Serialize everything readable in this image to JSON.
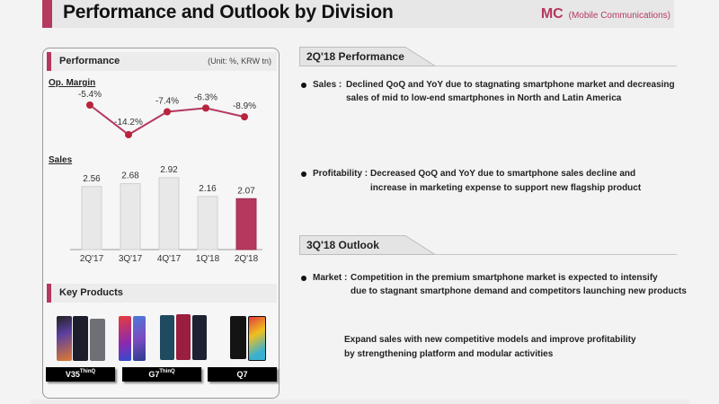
{
  "header": {
    "title": "Performance and Outlook by Division",
    "division_code": "MC",
    "division_name": "(Mobile Communications)",
    "accent_color": "#b5385e"
  },
  "left_panel": {
    "performance_title": "Performance",
    "unit": "(Unit: %, KRW tn)",
    "op_margin_label": "Op. Margin",
    "sales_label": "Sales",
    "key_products_title": "Key Products",
    "products": [
      {
        "name": "V35",
        "suffix": "ThinQ"
      },
      {
        "name": "G7",
        "suffix": "ThinQ"
      },
      {
        "name": "Q7",
        "suffix": ""
      }
    ]
  },
  "chart_data": [
    {
      "type": "line",
      "title": "Op. Margin",
      "categories": [
        "2Q'17",
        "3Q'17",
        "4Q'17",
        "1Q'18",
        "2Q'18"
      ],
      "values": [
        -5.4,
        -14.2,
        -7.4,
        -6.3,
        -8.9
      ],
      "labels": [
        "-5.4%",
        "-14.2%",
        "-7.4%",
        "-6.3%",
        "-8.9%"
      ],
      "unit": "%",
      "color": "#b5385e",
      "grid": false
    },
    {
      "type": "bar",
      "title": "Sales",
      "categories": [
        "2Q'17",
        "3Q'17",
        "4Q'17",
        "1Q'18",
        "2Q'18"
      ],
      "values": [
        2.56,
        2.68,
        2.92,
        2.16,
        2.07
      ],
      "labels": [
        "2.56",
        "2.68",
        "2.92",
        "2.16",
        "2.07"
      ],
      "unit": "KRW tn",
      "ylim": [
        0,
        3.0
      ],
      "bar_color": "#e8e8e8",
      "highlight_color": "#b5385e",
      "highlight_index": 4,
      "grid": false
    }
  ],
  "right": {
    "performance": {
      "title": "2Q'18 Performance",
      "items": [
        {
          "key": "Sales :",
          "line1": "Declined QoQ and YoY due to stagnating smartphone market and decreasing",
          "line2": "sales of mid to low-end smartphones in North and Latin America"
        },
        {
          "key": "Profitability :",
          "line1": "Decreased QoQ and YoY due to smartphone sales decline and",
          "line2": "increase in marketing expense to support new flagship product"
        }
      ]
    },
    "outlook": {
      "title": "3Q'18 Outlook",
      "items": [
        {
          "key": "Market :",
          "line1": "Competition in the premium smartphone market is expected to intensify",
          "line2": "due to stagnant smartphone demand and competitors launching new products"
        }
      ],
      "plan_line1": "Expand sales with new competitive models and improve profitability",
      "plan_line2": "by strengthening platform and modular activities"
    }
  }
}
